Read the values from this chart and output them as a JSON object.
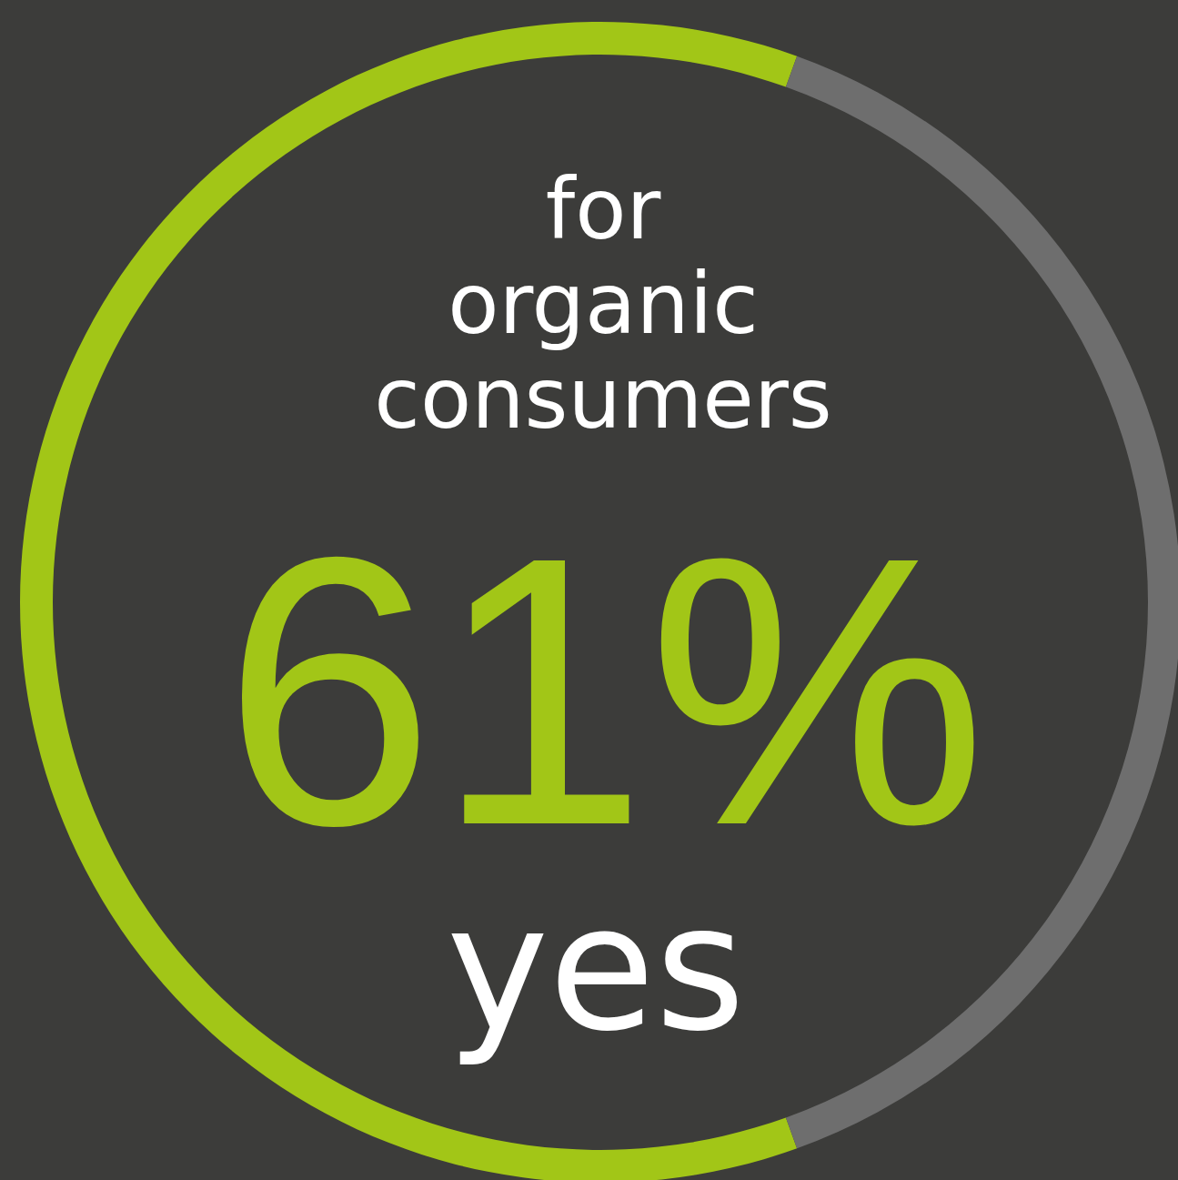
{
  "chart_data": {
    "type": "donut",
    "title": "for organic consumers",
    "categories": [
      "yes",
      null
    ],
    "values": [
      61,
      39
    ],
    "colors": [
      "#a2c617",
      "#6e6e6e"
    ],
    "value_labels": [
      "61%",
      null
    ],
    "legend": false
  }
}
